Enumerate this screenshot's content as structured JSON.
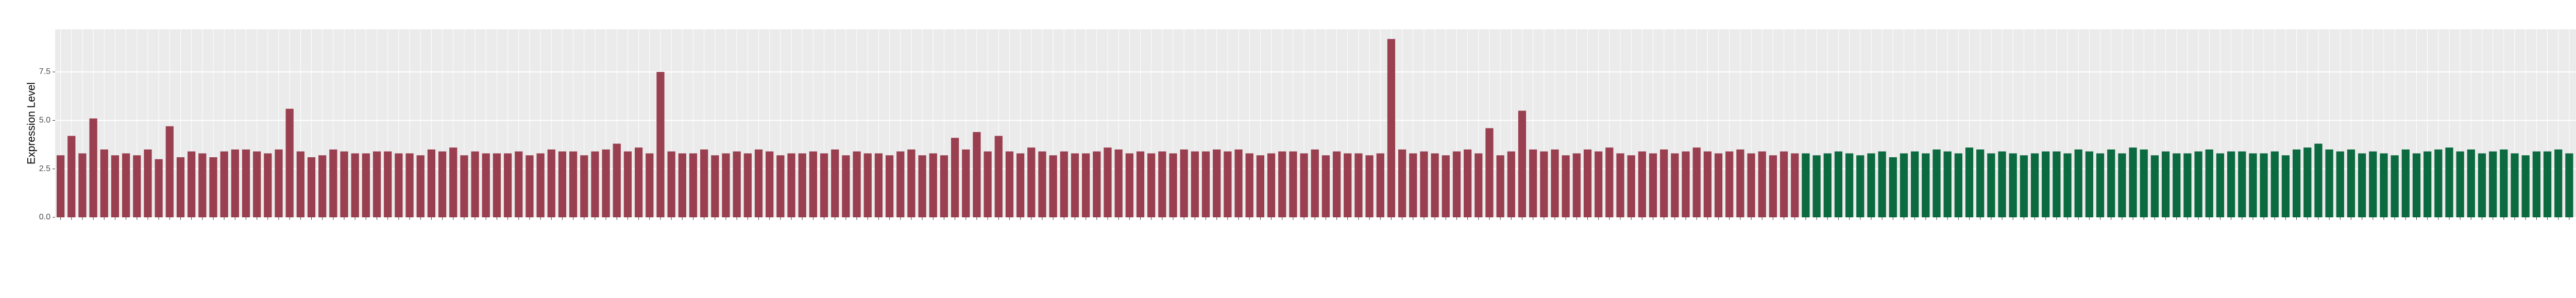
{
  "chart_data": {
    "type": "bar",
    "y_label": "Expression Level",
    "categories": [
      null,
      null,
      null,
      null,
      null,
      null,
      null,
      null,
      null,
      null,
      null,
      null,
      null,
      null,
      null,
      null,
      null,
      null,
      null,
      null,
      null,
      null,
      null,
      null,
      null,
      null,
      null,
      null,
      null,
      null,
      null,
      null,
      null,
      null,
      null,
      null,
      null,
      null,
      null,
      null,
      null,
      null,
      null,
      null,
      null,
      null,
      null,
      null,
      null,
      null,
      null,
      null,
      null,
      null,
      null,
      null,
      null,
      null,
      null,
      null,
      null,
      null,
      null,
      null,
      null,
      null,
      null,
      null,
      null,
      null,
      null,
      null,
      null,
      null,
      null,
      null,
      null,
      null,
      null,
      null,
      null,
      null,
      null,
      null,
      null,
      null,
      null,
      null,
      null,
      null,
      null,
      null,
      null,
      null,
      null,
      null,
      null,
      null,
      null,
      null,
      null,
      null,
      null,
      null,
      null,
      null,
      null,
      null,
      null,
      null,
      null,
      null,
      null,
      null,
      null,
      null,
      null,
      null,
      null,
      null,
      null,
      null,
      null,
      null,
      null,
      null,
      null,
      null,
      null,
      null,
      null,
      null,
      null,
      null,
      null,
      null,
      null,
      null,
      null,
      null,
      null,
      null,
      null,
      null,
      null,
      null,
      null,
      null,
      null,
      null,
      null,
      null,
      null,
      null,
      null,
      null,
      null,
      null,
      null,
      null,
      null,
      null,
      null,
      null,
      null,
      null,
      null,
      null,
      null,
      null,
      null,
      null,
      null,
      null,
      null,
      null,
      null,
      null,
      null,
      null,
      null,
      null,
      null,
      null,
      null,
      null,
      null,
      null,
      null,
      null,
      null,
      null,
      null,
      null,
      null,
      null,
      null,
      null,
      null,
      null,
      null,
      null,
      null,
      null,
      null,
      null,
      null,
      null,
      null,
      null,
      null,
      null,
      null,
      null,
      null,
      null,
      null,
      null,
      null,
      null,
      null,
      null,
      null,
      null,
      null,
      null,
      null,
      null,
      null,
      null,
      null,
      null,
      null,
      null,
      null,
      null,
      null,
      null,
      null,
      null
    ],
    "series": [
      {
        "color": "#9a3f4f",
        "values": [
          3.2,
          4.2,
          3.3,
          5.1,
          3.5,
          3.2,
          3.3,
          3.2,
          3.5,
          3.0,
          4.7,
          3.1,
          3.4,
          3.3,
          3.1,
          3.4,
          3.5,
          3.5,
          3.4,
          3.3,
          3.5,
          5.6,
          3.4,
          3.1,
          3.2,
          3.5,
          3.4,
          3.3,
          3.3,
          3.4,
          3.4,
          3.3,
          3.3,
          3.2,
          3.5,
          3.4,
          3.6,
          3.2,
          3.4,
          3.3,
          3.3,
          3.3,
          3.4,
          3.2,
          3.3,
          3.5,
          3.4,
          3.4,
          3.2,
          3.4,
          3.5,
          3.8,
          3.4,
          3.6,
          3.3,
          7.5,
          3.4,
          3.3,
          3.3,
          3.5,
          3.2,
          3.3,
          3.4,
          3.3,
          3.5,
          3.4,
          3.2,
          3.3,
          3.3,
          3.4,
          3.3,
          3.5,
          3.2,
          3.4,
          3.3,
          3.3,
          3.2,
          3.4,
          3.5,
          3.2,
          3.3,
          3.2,
          4.1,
          3.5,
          4.4,
          3.4,
          4.2,
          3.4,
          3.3,
          3.6,
          3.4,
          3.2,
          3.4,
          3.3,
          3.3,
          3.4,
          3.6,
          3.5,
          3.3,
          3.4,
          3.3,
          3.4,
          3.3,
          3.5,
          3.4,
          3.4,
          3.5,
          3.4,
          3.5,
          3.3,
          3.2,
          3.3,
          3.4,
          3.4,
          3.3,
          3.5,
          3.2,
          3.4,
          3.3,
          3.3,
          3.2,
          3.3,
          9.2,
          3.5,
          3.3,
          3.4,
          3.3,
          3.2,
          3.4,
          3.5,
          3.3,
          4.6,
          3.2,
          3.4,
          5.5,
          3.5,
          3.4,
          3.5,
          3.2,
          3.3,
          3.5,
          3.4,
          3.6,
          3.3,
          3.2,
          3.4,
          3.3,
          3.5,
          3.3,
          3.4,
          3.6,
          3.4,
          3.3,
          3.4,
          3.5,
          3.3,
          3.4,
          3.2,
          3.4,
          3.3,
          null,
          null,
          null,
          null,
          null,
          null,
          null,
          null,
          null,
          null,
          null,
          null,
          null,
          null,
          null,
          null,
          null,
          null,
          null,
          null,
          null,
          null,
          null,
          null,
          null,
          null,
          null,
          null,
          null,
          null,
          null,
          null,
          null,
          null,
          null,
          null,
          null,
          null,
          null,
          null,
          null,
          null,
          null,
          null,
          null,
          null,
          null,
          null,
          null,
          null,
          null,
          null,
          null,
          null,
          null,
          null,
          null,
          null,
          null,
          null,
          null,
          null,
          null,
          null,
          null,
          null,
          null,
          null,
          null,
          null,
          null,
          null,
          null,
          null,
          null,
          null,
          null,
          null,
          null,
          null
        ]
      },
      {
        "color": "#0b6a3f",
        "values": [
          null,
          null,
          null,
          null,
          null,
          null,
          null,
          null,
          null,
          null,
          null,
          null,
          null,
          null,
          null,
          null,
          null,
          null,
          null,
          null,
          null,
          null,
          null,
          null,
          null,
          null,
          null,
          null,
          null,
          null,
          null,
          null,
          null,
          null,
          null,
          null,
          null,
          null,
          null,
          null,
          null,
          null,
          null,
          null,
          null,
          null,
          null,
          null,
          null,
          null,
          null,
          null,
          null,
          null,
          null,
          null,
          null,
          null,
          null,
          null,
          null,
          null,
          null,
          null,
          null,
          null,
          null,
          null,
          null,
          null,
          null,
          null,
          null,
          null,
          null,
          null,
          null,
          null,
          null,
          null,
          null,
          null,
          null,
          null,
          null,
          null,
          null,
          null,
          null,
          null,
          null,
          null,
          null,
          null,
          null,
          null,
          null,
          null,
          null,
          null,
          null,
          null,
          null,
          null,
          null,
          null,
          null,
          null,
          null,
          null,
          null,
          null,
          null,
          null,
          null,
          null,
          null,
          null,
          null,
          null,
          null,
          null,
          null,
          null,
          null,
          null,
          null,
          null,
          null,
          null,
          null,
          null,
          null,
          null,
          null,
          null,
          null,
          null,
          null,
          null,
          null,
          null,
          null,
          null,
          null,
          null,
          null,
          null,
          null,
          null,
          null,
          null,
          null,
          null,
          null,
          null,
          null,
          null,
          null,
          null,
          3.3,
          3.2,
          3.3,
          3.4,
          3.3,
          3.2,
          3.3,
          3.4,
          3.1,
          3.3,
          3.4,
          3.3,
          3.5,
          3.4,
          3.3,
          3.6,
          3.5,
          3.3,
          3.4,
          3.3,
          3.2,
          3.3,
          3.4,
          3.4,
          3.3,
          3.5,
          3.4,
          3.3,
          3.5,
          3.3,
          3.6,
          3.5,
          3.2,
          3.4,
          3.3,
          3.3,
          3.4,
          3.5,
          3.3,
          3.4,
          3.4,
          3.3,
          3.3,
          3.4,
          3.2,
          3.5,
          3.6,
          3.8,
          3.5,
          3.4,
          3.5,
          3.3,
          3.4,
          3.3,
          3.2,
          3.5,
          3.3,
          3.4,
          3.5,
          3.6,
          3.4,
          3.5,
          3.3,
          3.4,
          3.5,
          3.3,
          3.2,
          3.4,
          3.4,
          3.5,
          3.3,
          3.3,
          3.6,
          3.3,
          3.4,
          3.5,
          3.3,
          3.4,
          3.5,
          3.4
        ]
      }
    ],
    "ylim": [
      0,
      9.7
    ],
    "yticks": [
      {
        "value": 0,
        "label": "0.0"
      },
      2.5,
      {
        "value": 5,
        "label": "5.0"
      },
      7.5
    ],
    "grid": true
  }
}
